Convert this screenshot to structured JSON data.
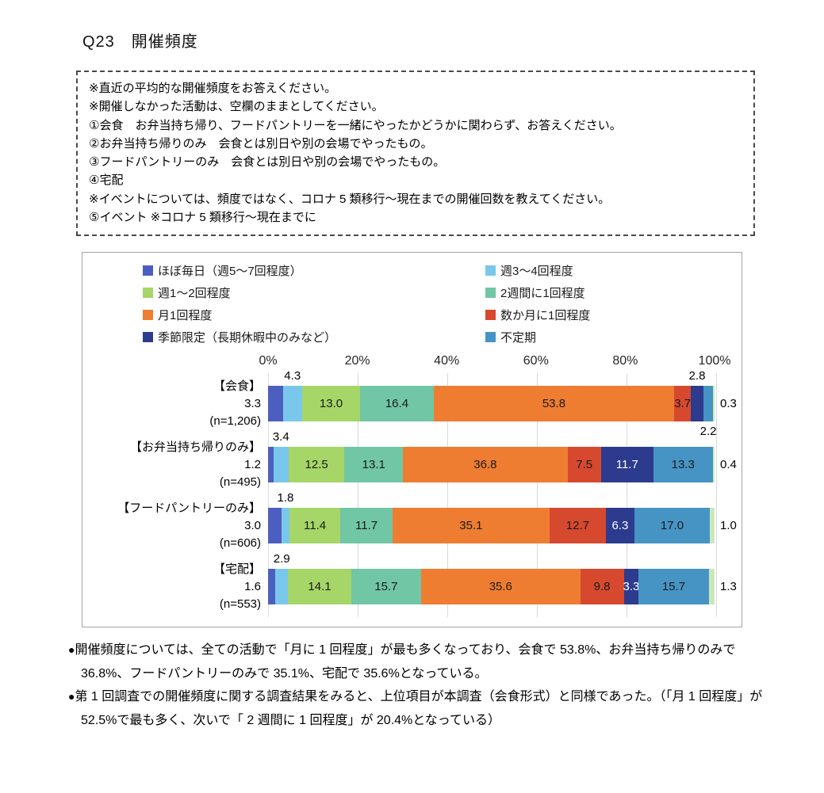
{
  "title": "Q23　開催頻度",
  "notes": {
    "lines": [
      "※直近の平均的な開催頻度をお答えください。",
      "※開催しなかった活動は、空欄のままとしてください。",
      "①会食　お弁当持ち帰り、フードパントリーを一緒にやったかどうかに関わらず、お答えください。",
      "②お弁当持ち帰りのみ　会食とは別日や別の会場でやったもの。",
      "③フードパントリーのみ　会食とは別日や別の会場でやったもの。",
      "④宅配",
      "※イベントについては、頻度ではなく、コロナ 5 類移行～現在までの開催回数を教えてください。",
      "⑤イベント ※コロナ 5 類移行～現在までに"
    ]
  },
  "chart_data": {
    "type": "bar",
    "stacked": true,
    "orientation": "horizontal",
    "xlim": [
      0,
      100
    ],
    "grid": true,
    "x_ticks": [
      "0%",
      "20%",
      "40%",
      "60%",
      "80%",
      "100%"
    ],
    "legend_position": "top",
    "legend": [
      {
        "label": "ほぼ毎日（週5～7回程度）",
        "color": "#4C5FC0"
      },
      {
        "label": "週3～4回程度",
        "color": "#7AC7EC"
      },
      {
        "label": "週1～2回程度",
        "color": "#A5D667"
      },
      {
        "label": "2週間に1回程度",
        "color": "#71C6A5"
      },
      {
        "label": "月1回程度",
        "color": "#EE7D31"
      },
      {
        "label": "数か月に1回程度",
        "color": "#D6492F"
      },
      {
        "label": "季節限定（長期休暇中のみなど）",
        "color": "#2C3B8D"
      },
      {
        "label": "不定期",
        "color": "#4694C4"
      }
    ],
    "extra_segment_color": "#CBE8B8",
    "white_text_segment_index": 6,
    "categories": [
      "【会食】",
      "【お弁当持ち帰りのみ】",
      "【フードパントリーのみ】",
      "【宅配】"
    ],
    "rows": [
      {
        "label": "【会食】",
        "n": "(n=1,206)",
        "values": [
          3.3,
          4.3,
          13.0,
          16.4,
          53.8,
          3.7,
          2.8,
          2.2,
          0.3
        ],
        "label_positions": [
          "left",
          "above",
          "in",
          "in",
          "in",
          "in",
          "above",
          "below",
          "right"
        ]
      },
      {
        "label": "【お弁当持ち帰りのみ】",
        "n": "(n=495)",
        "values": [
          1.2,
          3.4,
          12.5,
          13.1,
          36.8,
          7.5,
          11.7,
          13.3,
          0.4
        ],
        "label_positions": [
          "left",
          "above",
          "in",
          "in",
          "in",
          "in",
          "in",
          "in",
          "right"
        ]
      },
      {
        "label": "【フードパントリーのみ】",
        "n": "(n=606)",
        "values": [
          3.0,
          1.8,
          11.4,
          11.7,
          35.1,
          12.7,
          6.3,
          17.0,
          1.0
        ],
        "label_positions": [
          "left",
          "above",
          "in",
          "in",
          "in",
          "in",
          "in",
          "in",
          "right"
        ]
      },
      {
        "label": "【宅配】",
        "n": "(n=553)",
        "values": [
          1.6,
          2.9,
          14.1,
          15.7,
          35.6,
          9.8,
          3.3,
          15.7,
          1.3
        ],
        "label_positions": [
          "left",
          "above",
          "in",
          "in",
          "in",
          "in",
          "in",
          "in",
          "right"
        ]
      }
    ]
  },
  "bullets": [
    "開催頻度については、全ての活動で「月に 1 回程度」が最も多くなっており、会食で 53.8%、お弁当持ち帰りのみで 36.8%、フードパントリーのみで 35.1%、宅配で 35.6%となっている。",
    "第 1 回調査での開催頻度に関する調査結果をみると、上位項目が本調査（会食形式）と同様であった。（「月 1 回程度」が 52.5%で最も多く、次いで「 2 週間に 1 回程度」が 20.4%となっている）"
  ]
}
